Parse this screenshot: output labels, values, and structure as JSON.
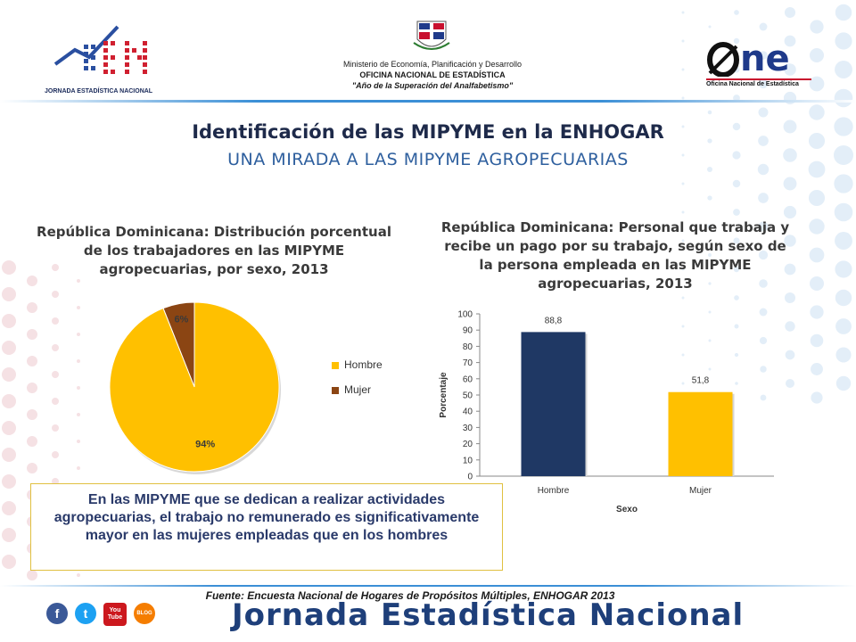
{
  "header": {
    "left_logo_text": "JORNADA ESTADÍSTICA NACIONAL",
    "ministry_lines": [
      "Ministerio de Economía, Planificación y Desarrollo",
      "OFICINA NACIONAL DE ESTADÍSTICA",
      "\"Año de la Superación del Analfabetismo\""
    ],
    "one_logo_text": "ne",
    "one_logo_caption": "Oficina Nacional de Estadística"
  },
  "titles": {
    "main": "Identificación de las MIPYME en la ENHOGAR",
    "sub": "UNA MIRADA A LAS MIPYME AGROPECUARIAS"
  },
  "chart_data": [
    {
      "type": "pie",
      "title": "República Dominicana: Distribución porcentual de los trabajadores en las MIPYME agropecuarias, por sexo, 2013",
      "categories": [
        "Hombre",
        "Mujer"
      ],
      "values": [
        94,
        6
      ],
      "labels": [
        "94%",
        "6%"
      ],
      "colors": [
        "#FFC000",
        "#8B4513"
      ],
      "legend": "right"
    },
    {
      "type": "bar",
      "title": "República Dominicana: Personal que trabaja y recibe un pago por su trabajo, según sexo de la persona empleada en las MIPYME agropecuarias, 2013",
      "categories": [
        "Hombre",
        "Mujer"
      ],
      "values": [
        88.8,
        51.8
      ],
      "data_labels": [
        "88,8",
        "51,8"
      ],
      "colors": [
        "#1F3864",
        "#FFC000"
      ],
      "xlabel": "Sexo",
      "ylabel": "Porcentaje",
      "ylim": [
        0,
        100
      ],
      "yticks": [
        "0",
        "10",
        "20",
        "30",
        "40",
        "50",
        "60",
        "70",
        "80",
        "90",
        "100"
      ],
      "grid": false
    }
  ],
  "note": "En las MIPYME que se dedican a realizar actividades agropecuarias, el trabajo no remunerado es significativamente mayor en las mujeres empleadas que en los hombres",
  "source": "Fuente: Encuesta Nacional de Hogares de Propósitos Múltiples, ENHOGAR 2013",
  "footer": {
    "jornada": "Jornada Estadística Nacional",
    "social_icons": [
      "facebook-icon",
      "twitter-icon",
      "youtube-icon",
      "blog-icon"
    ],
    "social_labels": [
      "f",
      "t",
      "You Tube",
      "BLOG"
    ]
  }
}
